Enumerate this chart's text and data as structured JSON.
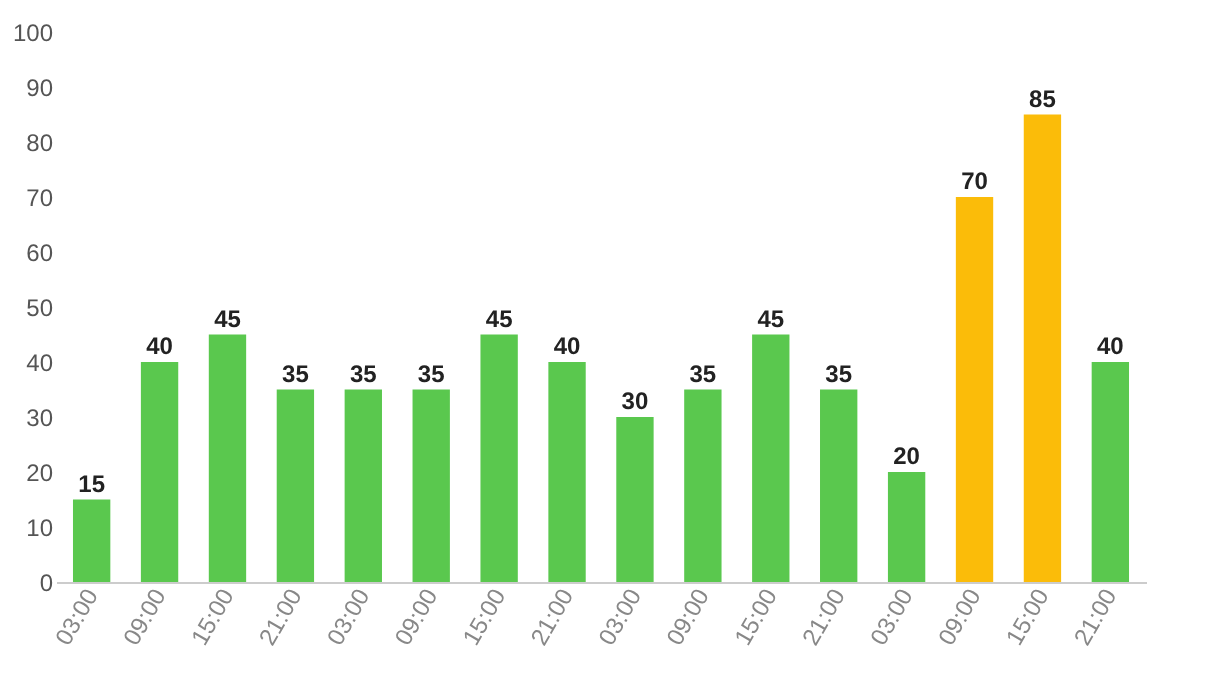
{
  "chart_data": {
    "type": "bar",
    "categories": [
      "03:00",
      "09:00",
      "15:00",
      "21:00",
      "03:00",
      "09:00",
      "15:00",
      "21:00",
      "03:00",
      "09:00",
      "15:00",
      "21:00",
      "03:00",
      "09:00",
      "15:00",
      "21:00"
    ],
    "values": [
      15,
      40,
      45,
      35,
      35,
      35,
      45,
      40,
      30,
      35,
      45,
      35,
      20,
      70,
      85,
      40
    ],
    "colors": [
      "#5ac84e",
      "#5ac84e",
      "#5ac84e",
      "#5ac84e",
      "#5ac84e",
      "#5ac84e",
      "#5ac84e",
      "#5ac84e",
      "#5ac84e",
      "#5ac84e",
      "#5ac84e",
      "#5ac84e",
      "#5ac84e",
      "#fbbc09",
      "#fbbc09",
      "#5ac84e"
    ],
    "ylim": [
      0,
      100
    ],
    "yticks": [
      0,
      10,
      20,
      30,
      40,
      50,
      60,
      70,
      80,
      90,
      100
    ],
    "data_labels": true,
    "grid": false
  }
}
